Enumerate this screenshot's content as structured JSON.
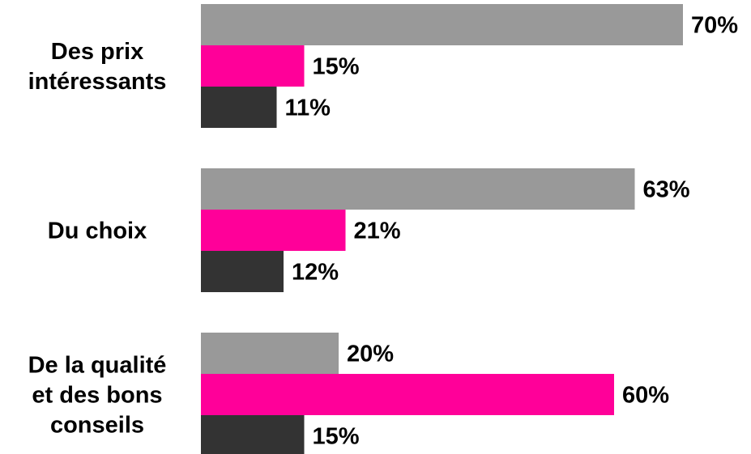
{
  "chart_data": {
    "type": "bar",
    "orientation": "horizontal",
    "categories": [
      [
        "Des prix",
        "intéressants"
      ],
      [
        "Du choix"
      ],
      [
        "De la qualité",
        "et des bons",
        "conseils"
      ]
    ],
    "series": [
      {
        "color": "#999999",
        "values": [
          70,
          63,
          20
        ],
        "labels": [
          "70%",
          "63%",
          "20%"
        ]
      },
      {
        "color": "#ff0099",
        "values": [
          15,
          21,
          60
        ],
        "labels": [
          "15%",
          "21%",
          "60%"
        ]
      },
      {
        "color": "#333333",
        "values": [
          11,
          12,
          15
        ],
        "labels": [
          "11%",
          "12%",
          "15%"
        ]
      }
    ],
    "xlim": [
      0,
      100
    ],
    "grid": false,
    "legend": "none",
    "title": "",
    "xlabel": "",
    "ylabel": ""
  }
}
